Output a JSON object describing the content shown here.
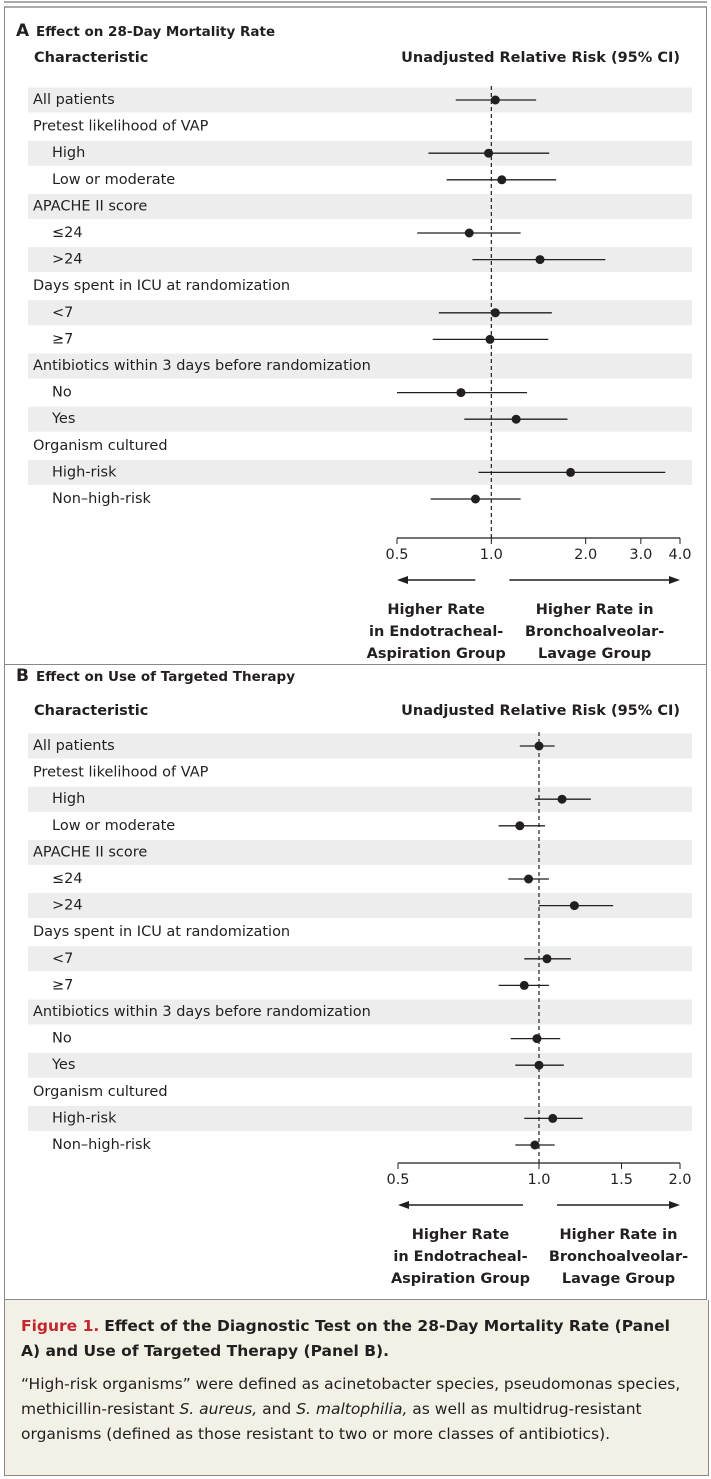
{
  "chart_data": [
    {
      "type": "forest",
      "panel": "A",
      "title": "Effect on 28-Day Mortality Rate",
      "label_header": "Characteristic",
      "value_header": "Unadjusted Relative Risk (95% CI)",
      "categories": [
        "All patients",
        "Pretest likelihood of VAP",
        "High",
        "Low or moderate",
        "APACHE II score",
        "≤24",
        ">24",
        "Days spent in ICU at randomization",
        "<7",
        "≥7",
        "Antibiotics within 3 days before randomization",
        "No",
        "Yes",
        "Organism cultured",
        "High-risk",
        "Non–high-risk"
      ],
      "values": [
        1.03,
        null,
        0.98,
        1.08,
        null,
        0.85,
        1.43,
        null,
        1.03,
        0.99,
        null,
        0.8,
        1.2,
        null,
        1.79,
        0.89
      ],
      "ci_low": [
        0.77,
        null,
        0.63,
        0.72,
        null,
        0.58,
        0.87,
        null,
        0.68,
        0.65,
        null,
        0.5,
        0.82,
        null,
        0.91,
        0.64
      ],
      "ci_high": [
        1.39,
        null,
        1.53,
        1.61,
        null,
        1.24,
        2.31,
        null,
        1.56,
        1.52,
        null,
        1.3,
        1.75,
        null,
        3.59,
        1.24
      ],
      "log": true,
      "xlim": [
        0.5,
        4
      ],
      "refline": 1,
      "color": "#231f20",
      "xticks": [
        0.5,
        {
          "value": 1,
          "label": "1.0"
        },
        {
          "value": 2,
          "label": "2.0"
        },
        {
          "value": 3,
          "label": "3.0"
        },
        {
          "value": 4,
          "label": "4.0"
        }
      ],
      "left_label": [
        "Higher Rate",
        "in Endotracheal-",
        "Aspiration Group"
      ],
      "right_label": [
        "Higher Rate in",
        "Bronchoalveolar-",
        "Lavage Group"
      ]
    },
    {
      "type": "forest",
      "panel": "B",
      "title": "Effect on Use of Targeted Therapy",
      "label_header": "Characteristic",
      "value_header": "Unadjusted Relative Risk (95% CI)",
      "categories": [
        "All patients",
        "Pretest likelihood of VAP",
        "High",
        "Low or moderate",
        "APACHE II score",
        "≤24",
        ">24",
        "Days spent in ICU at randomization",
        "<7",
        "≥7",
        "Antibiotics within 3 days before randomization",
        "No",
        "Yes",
        "Organism cultured",
        "High-risk",
        "Non–high-risk"
      ],
      "values": [
        1.0,
        null,
        1.12,
        0.91,
        null,
        0.95,
        1.19,
        null,
        1.04,
        0.93,
        null,
        0.99,
        1.0,
        null,
        1.07,
        0.98
      ],
      "ci_low": [
        0.91,
        null,
        0.98,
        0.82,
        null,
        0.86,
        1.0,
        null,
        0.93,
        0.82,
        null,
        0.87,
        0.89,
        null,
        0.93,
        0.89
      ],
      "ci_high": [
        1.08,
        null,
        1.29,
        1.03,
        null,
        1.05,
        1.44,
        null,
        1.17,
        1.05,
        null,
        1.11,
        1.13,
        null,
        1.24,
        1.08
      ],
      "log": true,
      "xlim": [
        0.5,
        2
      ],
      "refline": 1,
      "color": "#231f20",
      "xticks": [
        0.5,
        {
          "value": 1,
          "label": "1.0"
        },
        1.5,
        {
          "value": 2,
          "label": "2.0"
        }
      ],
      "left_label": [
        "Higher Rate",
        "in Endotracheal-",
        "Aspiration Group"
      ],
      "right_label": [
        "Higher Rate in",
        "Bronchoalveolar-",
        "Lavage Group"
      ]
    }
  ],
  "caption": {
    "label": "Figure 1.",
    "title": "Effect of the Diagnostic Test on the 28-Day Mortality Rate (Panel A) and Use of Targeted Therapy (Panel B).",
    "body": [
      "“High-risk organisms” were defined as acinetobacter species, pseudomonas species, methicillin-resistant ",
      "S. aureus,",
      " and ",
      "S. maltophilia,",
      " as well as multidrug-resistant organisms (defined as those resistant to two or more classes of antibiotics)."
    ]
  }
}
